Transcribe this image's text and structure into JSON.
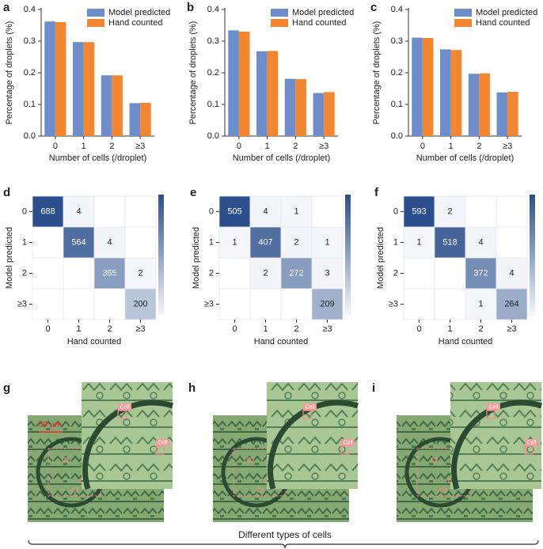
{
  "chart_data": [
    {
      "type": "bar",
      "panel_label": "a",
      "xlabel": "Number of cells (/droplet)",
      "ylabel": "Percentage of droplets (%)",
      "categories": [
        "0",
        "1",
        "2",
        "≥3"
      ],
      "series": [
        {
          "name": "Model predicted",
          "color": "#6d8ecb",
          "values": [
            0.362,
            0.297,
            0.192,
            0.104
          ]
        },
        {
          "name": "Hand counted",
          "color": "#f58630",
          "values": [
            0.36,
            0.297,
            0.192,
            0.105
          ]
        }
      ],
      "ylim": [
        0,
        0.4
      ],
      "yticks": [
        {
          "value": 0,
          "label": "0.0"
        },
        0.1,
        0.2,
        0.3,
        0.4
      ]
    },
    {
      "type": "bar",
      "panel_label": "b",
      "xlabel": "Number of cells (/droplet)",
      "ylabel": "Percentage of droplets (%)",
      "categories": [
        "0",
        "1",
        "2",
        "≥3"
      ],
      "series": [
        {
          "name": "Model predicted",
          "color": "#6d8ecb",
          "values": [
            0.334,
            0.268,
            0.181,
            0.136
          ]
        },
        {
          "name": "Hand counted",
          "color": "#f58630",
          "values": [
            0.33,
            0.269,
            0.18,
            0.139
          ]
        }
      ],
      "ylim": [
        0,
        0.4
      ],
      "yticks": [
        {
          "value": 0,
          "label": "0.0"
        },
        0.1,
        0.2,
        0.3,
        0.4
      ]
    },
    {
      "type": "bar",
      "panel_label": "c",
      "xlabel": "Number of cells (/droplet)",
      "ylabel": "Percentage of droplets (%)",
      "categories": [
        "0",
        "1",
        "2",
        "≥3"
      ],
      "series": [
        {
          "name": "Model predicted",
          "color": "#6d8ecb",
          "values": [
            0.311,
            0.274,
            0.197,
            0.138
          ]
        },
        {
          "name": "Hand counted",
          "color": "#f58630",
          "values": [
            0.31,
            0.272,
            0.198,
            0.14
          ]
        }
      ],
      "ylim": [
        0,
        0.4
      ],
      "yticks": [
        {
          "value": 0,
          "label": "0.0"
        },
        0.1,
        0.2,
        0.3,
        0.4
      ]
    },
    {
      "type": "heatmap",
      "panel_label": "d",
      "xlabel": "Hand counted",
      "ylabel": "Model predicted",
      "color": "#2b4f8c",
      "x_categories": [
        "0",
        "1",
        "2",
        "≥3"
      ],
      "y_categories": [
        "0",
        "1",
        "2",
        "≥3"
      ],
      "matrix": [
        [
          688,
          4,
          null,
          null
        ],
        [
          null,
          564,
          4,
          null
        ],
        [
          null,
          null,
          365,
          2
        ],
        [
          null,
          null,
          null,
          200
        ]
      ]
    },
    {
      "type": "heatmap",
      "panel_label": "e",
      "xlabel": "Hand counted",
      "ylabel": "Model predicted",
      "color": "#2b4f8c",
      "x_categories": [
        "0",
        "1",
        "2",
        "≥3"
      ],
      "y_categories": [
        "0",
        "1",
        "2",
        "≥3"
      ],
      "matrix": [
        [
          505,
          4,
          1,
          null
        ],
        [
          1,
          407,
          2,
          1
        ],
        [
          null,
          2,
          272,
          3
        ],
        [
          null,
          null,
          null,
          209
        ]
      ]
    },
    {
      "type": "heatmap",
      "panel_label": "f",
      "xlabel": "Hand counted",
      "ylabel": "Model predicted",
      "color": "#2b4f8c",
      "x_categories": [
        "0",
        "1",
        "2",
        "≥3"
      ],
      "y_categories": [
        "0",
        "1",
        "2",
        "≥3"
      ],
      "matrix": [
        [
          593,
          2,
          null,
          null
        ],
        [
          1,
          518,
          4,
          null
        ],
        [
          null,
          null,
          372,
          4
        ],
        [
          null,
          null,
          1,
          264
        ]
      ]
    }
  ],
  "images": [
    {
      "panel_label": "g",
      "scale_bar": "50 μm",
      "cell_labels": [
        "Cell",
        "Cell"
      ]
    },
    {
      "panel_label": "h",
      "cell_labels": [
        "Cell",
        "Cell"
      ]
    },
    {
      "panel_label": "i",
      "cell_labels": [
        "Cell",
        "Cell"
      ]
    }
  ],
  "caption": "Different types of cells"
}
